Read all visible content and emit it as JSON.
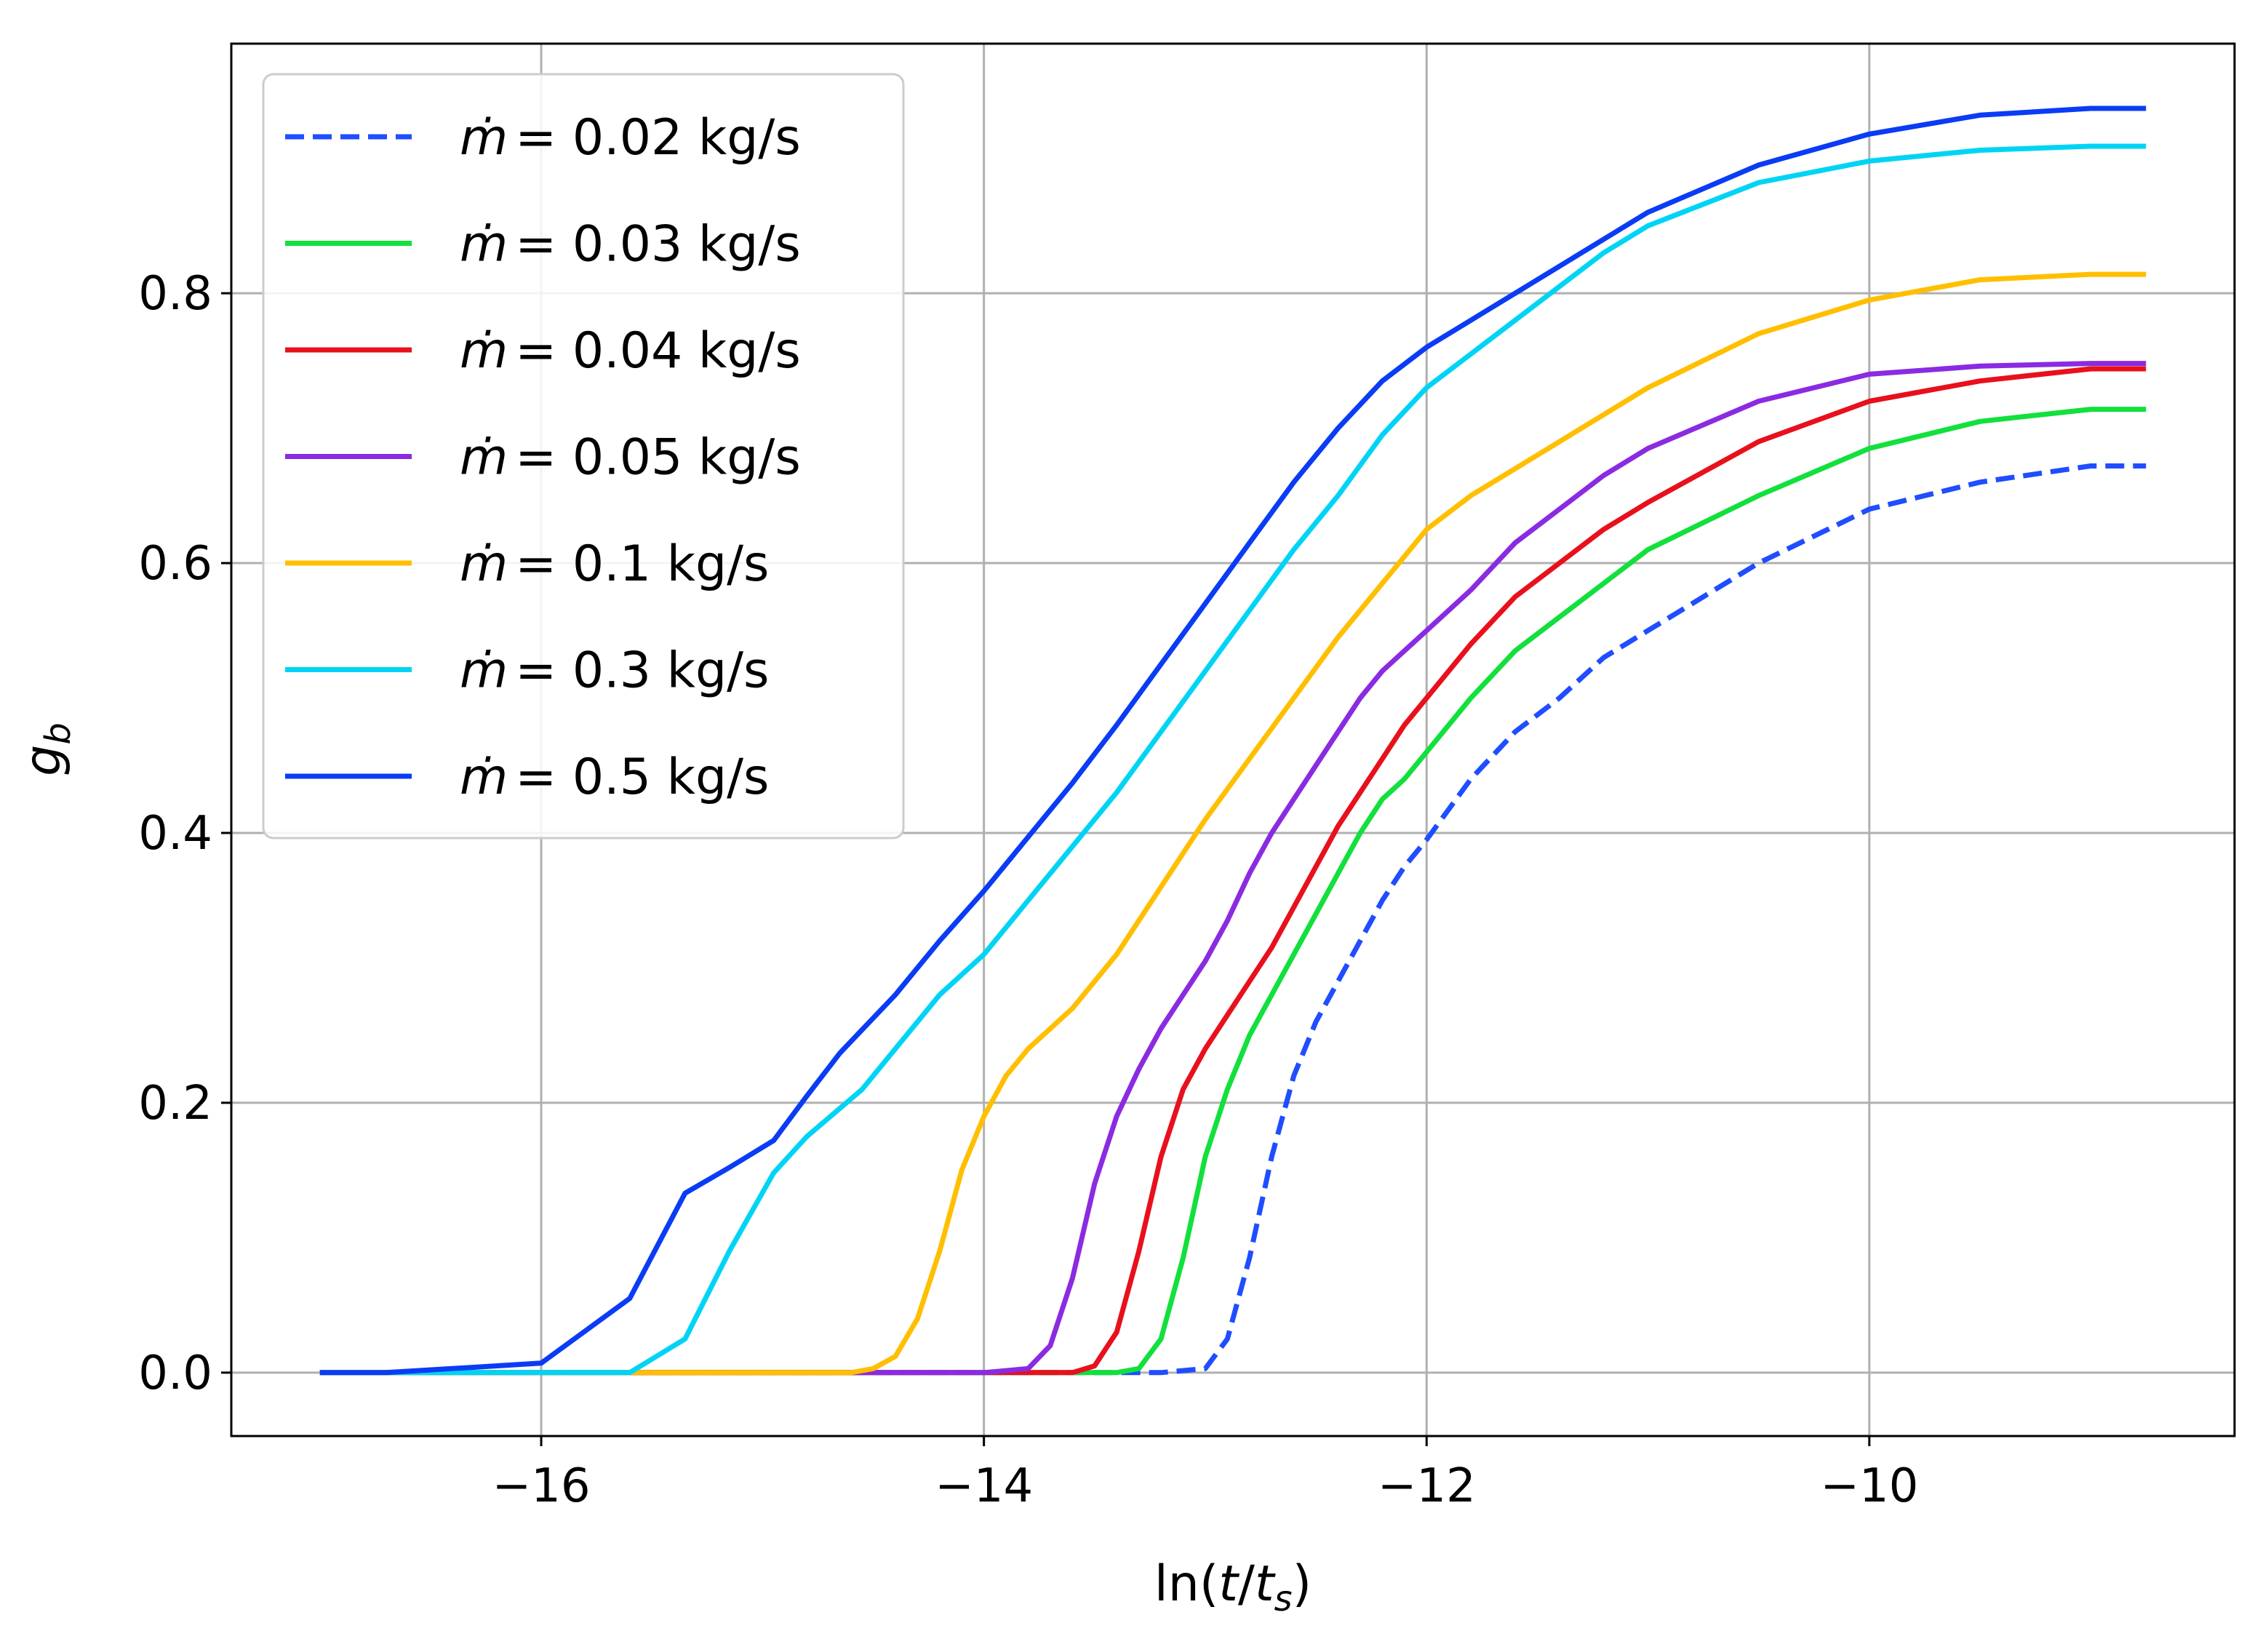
{
  "chart_data": {
    "type": "line",
    "title": "",
    "xlabel": "ln(t/t_s)",
    "ylabel": "g_b",
    "xlim": [
      -17.4,
      -8.35
    ],
    "ylim": [
      -0.047,
      0.985
    ],
    "xticks": [
      -16,
      -14,
      -12,
      -10
    ],
    "xtick_labels": [
      "−16",
      "−14",
      "−12",
      "−10"
    ],
    "yticks": [
      0.0,
      0.2,
      0.4,
      0.6,
      0.8
    ],
    "ytick_labels": [
      "0.0",
      "0.2",
      "0.4",
      "0.6",
      "0.8"
    ],
    "grid": true,
    "legend_position": "upper-left",
    "series": [
      {
        "name": "ṁ = 0.02 kg/s",
        "label_prefix": "ṁ",
        "label_value": "= 0.02 kg/s",
        "color": "#1f4dff",
        "dash": true,
        "x": [
          -17.0,
          -16.0,
          -15.0,
          -14.0,
          -13.2,
          -13.0,
          -12.9,
          -12.8,
          -12.7,
          -12.6,
          -12.5,
          -12.4,
          -12.3,
          -12.2,
          -12.1,
          -12.0,
          -11.8,
          -11.6,
          -11.4,
          -11.2,
          -11.0,
          -10.5,
          -10.0,
          -9.5,
          -9.0,
          -8.75
        ],
        "y": [
          0.0,
          0.0,
          0.0,
          0.0,
          0.0,
          0.003,
          0.025,
          0.085,
          0.16,
          0.22,
          0.26,
          0.29,
          0.32,
          0.35,
          0.375,
          0.395,
          0.44,
          0.475,
          0.5,
          0.53,
          0.55,
          0.6,
          0.64,
          0.66,
          0.672,
          0.672
        ]
      },
      {
        "name": "ṁ = 0.03 kg/s",
        "label_prefix": "ṁ",
        "label_value": "= 0.03 kg/s",
        "color": "#12e03c",
        "dash": false,
        "x": [
          -17.0,
          -16.0,
          -15.0,
          -14.0,
          -13.4,
          -13.3,
          -13.2,
          -13.1,
          -13.0,
          -12.9,
          -12.8,
          -12.7,
          -12.6,
          -12.5,
          -12.4,
          -12.3,
          -12.2,
          -12.1,
          -12.0,
          -11.8,
          -11.6,
          -11.4,
          -11.2,
          -11.0,
          -10.5,
          -10.0,
          -9.5,
          -9.0,
          -8.75
        ],
        "y": [
          0.0,
          0.0,
          0.0,
          0.0,
          0.0,
          0.003,
          0.025,
          0.085,
          0.16,
          0.21,
          0.25,
          0.28,
          0.31,
          0.34,
          0.37,
          0.4,
          0.425,
          0.44,
          0.46,
          0.5,
          0.535,
          0.56,
          0.585,
          0.61,
          0.65,
          0.685,
          0.705,
          0.714,
          0.714
        ]
      },
      {
        "name": "ṁ = 0.04 kg/s",
        "label_prefix": "ṁ",
        "label_value": "= 0.04 kg/s",
        "color": "#e8101c",
        "dash": false,
        "x": [
          -17.0,
          -16.0,
          -15.0,
          -14.0,
          -13.6,
          -13.5,
          -13.4,
          -13.3,
          -13.2,
          -13.1,
          -13.0,
          -12.9,
          -12.8,
          -12.7,
          -12.6,
          -12.5,
          -12.4,
          -12.3,
          -12.2,
          -12.1,
          -12.0,
          -11.8,
          -11.6,
          -11.4,
          -11.2,
          -11.0,
          -10.5,
          -10.0,
          -9.5,
          -9.0,
          -8.75
        ],
        "y": [
          0.0,
          0.0,
          0.0,
          0.0,
          0.0,
          0.005,
          0.03,
          0.09,
          0.16,
          0.21,
          0.24,
          0.265,
          0.29,
          0.315,
          0.345,
          0.375,
          0.405,
          0.43,
          0.455,
          0.48,
          0.5,
          0.54,
          0.575,
          0.6,
          0.625,
          0.645,
          0.69,
          0.72,
          0.735,
          0.744,
          0.744
        ]
      },
      {
        "name": "ṁ = 0.05 kg/s",
        "label_prefix": "ṁ",
        "label_value": "= 0.05 kg/s",
        "color": "#8a2be2",
        "dash": false,
        "x": [
          -17.0,
          -16.0,
          -15.0,
          -14.0,
          -13.8,
          -13.7,
          -13.6,
          -13.5,
          -13.4,
          -13.3,
          -13.2,
          -13.1,
          -13.0,
          -12.9,
          -12.8,
          -12.7,
          -12.6,
          -12.5,
          -12.4,
          -12.3,
          -12.2,
          -12.1,
          -12.0,
          -11.8,
          -11.6,
          -11.4,
          -11.2,
          -11.0,
          -10.5,
          -10.0,
          -9.5,
          -9.0,
          -8.75
        ],
        "y": [
          0.0,
          0.0,
          0.0,
          0.0,
          0.003,
          0.02,
          0.07,
          0.14,
          0.19,
          0.225,
          0.255,
          0.28,
          0.305,
          0.335,
          0.37,
          0.4,
          0.425,
          0.45,
          0.475,
          0.5,
          0.52,
          0.535,
          0.55,
          0.58,
          0.615,
          0.64,
          0.665,
          0.685,
          0.72,
          0.74,
          0.746,
          0.748,
          0.748
        ]
      },
      {
        "name": "ṁ = 0.1 kg/s",
        "label_prefix": "ṁ",
        "label_value": "= 0.1 kg/s",
        "color": "#ffbf00",
        "dash": false,
        "x": [
          -17.0,
          -16.0,
          -15.0,
          -14.6,
          -14.5,
          -14.4,
          -14.3,
          -14.2,
          -14.1,
          -14.0,
          -13.9,
          -13.8,
          -13.7,
          -13.6,
          -13.4,
          -13.2,
          -13.0,
          -12.8,
          -12.6,
          -12.4,
          -12.2,
          -12.0,
          -11.8,
          -11.6,
          -11.4,
          -11.2,
          -11.0,
          -10.5,
          -10.0,
          -9.5,
          -9.0,
          -8.75
        ],
        "y": [
          0.0,
          0.0,
          0.0,
          0.0,
          0.003,
          0.012,
          0.04,
          0.09,
          0.15,
          0.19,
          0.22,
          0.24,
          0.255,
          0.27,
          0.31,
          0.36,
          0.41,
          0.455,
          0.5,
          0.545,
          0.585,
          0.625,
          0.65,
          0.67,
          0.69,
          0.71,
          0.73,
          0.77,
          0.795,
          0.81,
          0.814,
          0.814
        ]
      },
      {
        "name": "ṁ = 0.3 kg/s",
        "label_prefix": "ṁ",
        "label_value": "= 0.3 kg/s",
        "color": "#00d4f5",
        "dash": false,
        "x": [
          -17.0,
          -16.0,
          -15.6,
          -15.35,
          -15.15,
          -14.95,
          -14.8,
          -14.55,
          -14.4,
          -14.2,
          -14.0,
          -13.8,
          -13.6,
          -13.4,
          -13.2,
          -13.0,
          -12.8,
          -12.6,
          -12.4,
          -12.2,
          -12.0,
          -11.8,
          -11.6,
          -11.4,
          -11.2,
          -11.0,
          -10.5,
          -10.0,
          -9.5,
          -9.0,
          -8.75
        ],
        "y": [
          0.0,
          0.0,
          0.0,
          0.025,
          0.09,
          0.148,
          0.175,
          0.21,
          0.24,
          0.28,
          0.31,
          0.35,
          0.39,
          0.43,
          0.475,
          0.52,
          0.565,
          0.61,
          0.65,
          0.695,
          0.73,
          0.755,
          0.78,
          0.805,
          0.83,
          0.85,
          0.882,
          0.898,
          0.906,
          0.909,
          0.909
        ]
      },
      {
        "name": "ṁ = 0.5 kg/s",
        "label_prefix": "ṁ",
        "label_value": "= 0.5 kg/s",
        "color": "#0a3cf5",
        "dash": false,
        "x": [
          -17.0,
          -16.7,
          -16.0,
          -15.6,
          -15.35,
          -15.15,
          -14.95,
          -14.8,
          -14.65,
          -14.4,
          -14.2,
          -14.0,
          -13.8,
          -13.6,
          -13.4,
          -13.2,
          -13.0,
          -12.8,
          -12.6,
          -12.4,
          -12.2,
          -12.0,
          -11.8,
          -11.6,
          -11.4,
          -11.2,
          -11.0,
          -10.5,
          -10.0,
          -9.5,
          -9.0,
          -8.75
        ],
        "y": [
          0.0,
          0.0,
          0.007,
          0.055,
          0.133,
          0.152,
          0.172,
          0.205,
          0.237,
          0.28,
          0.32,
          0.357,
          0.397,
          0.437,
          0.48,
          0.525,
          0.57,
          0.615,
          0.66,
          0.7,
          0.735,
          0.76,
          0.78,
          0.8,
          0.82,
          0.84,
          0.86,
          0.895,
          0.918,
          0.932,
          0.937,
          0.937
        ]
      }
    ]
  }
}
